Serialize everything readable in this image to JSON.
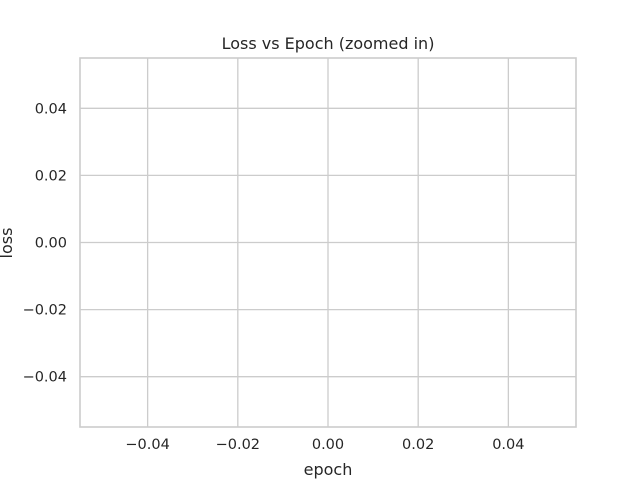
{
  "chart_data": {
    "type": "line",
    "title": "Loss vs Epoch (zoomed in)",
    "xlabel": "epoch",
    "ylabel": "loss",
    "xlim": [
      -0.055,
      0.055
    ],
    "ylim": [
      -0.055,
      0.055
    ],
    "xticks": [
      -0.04,
      -0.02,
      0.0,
      0.02,
      0.04
    ],
    "xtick_labels": [
      "−0.04",
      "−0.02",
      "0.00",
      "0.02",
      "0.04"
    ],
    "yticks": [
      -0.04,
      -0.02,
      0.0,
      0.02,
      0.04
    ],
    "ytick_labels": [
      "−0.04",
      "−0.02",
      "0.00",
      "0.02",
      "0.04"
    ],
    "grid": true,
    "series": [],
    "colors": {
      "grid": "#cccccc",
      "frame": "#cccccc",
      "text": "#262626",
      "background": "#ffffff"
    }
  }
}
